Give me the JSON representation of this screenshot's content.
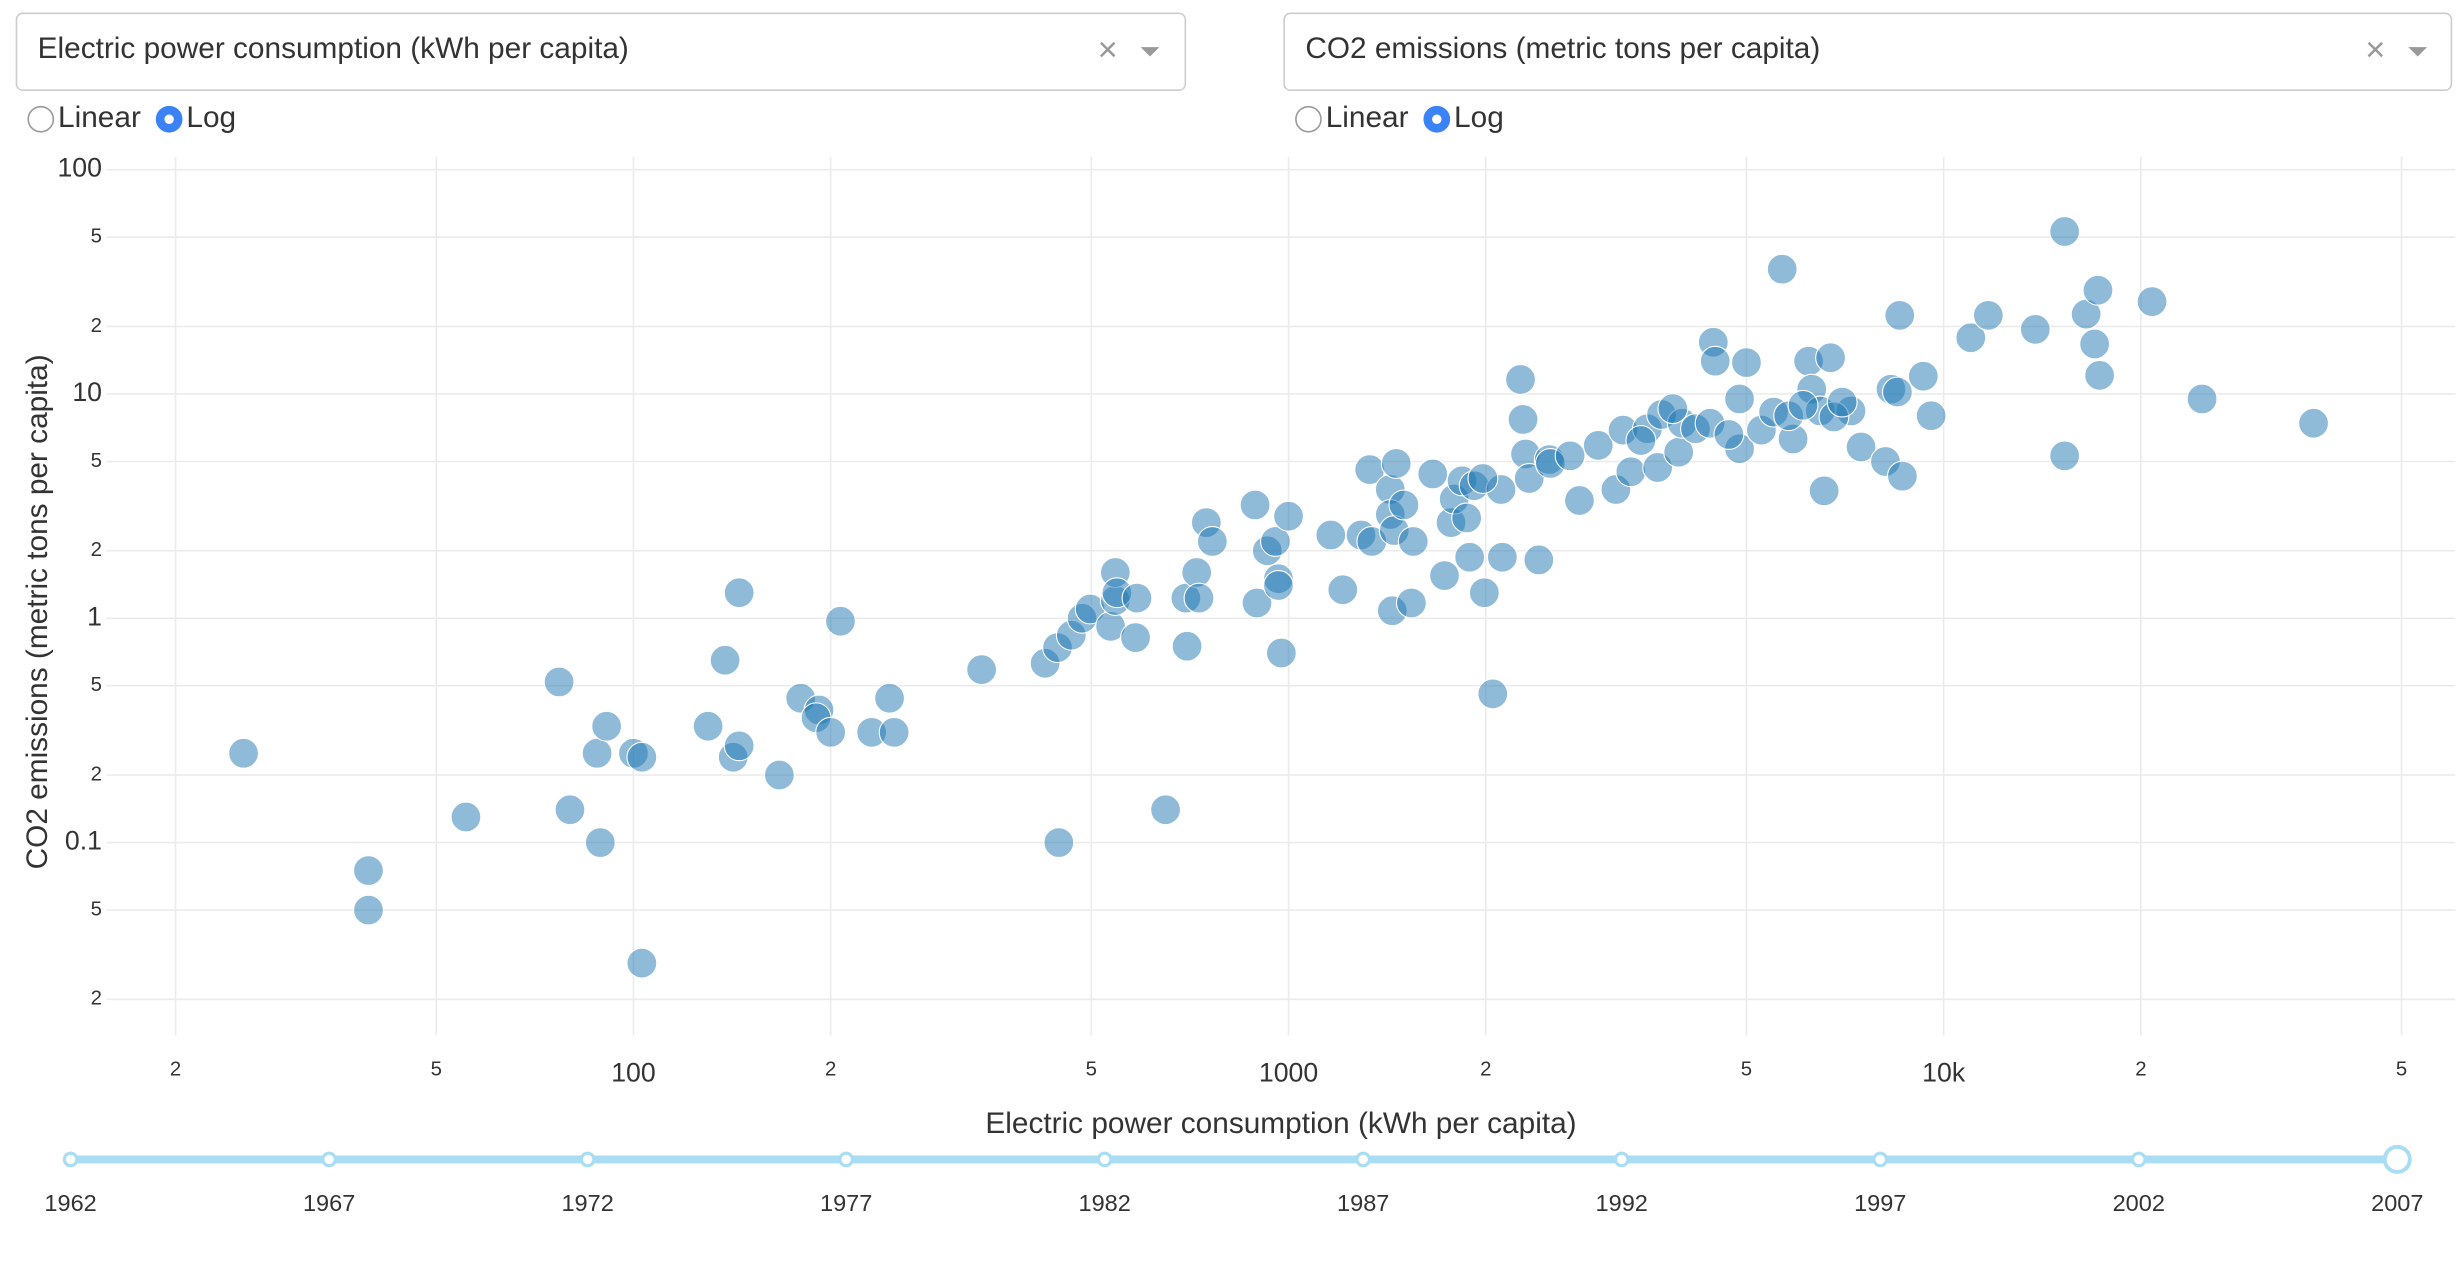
{
  "left_control": {
    "dropdown": "Electric power consumption (kWh per capita)",
    "scale_options": [
      "Linear",
      "Log"
    ],
    "scale": "Log"
  },
  "right_control": {
    "dropdown": "CO2 emissions (metric tons per capita)",
    "scale_options": [
      "Linear",
      "Log"
    ],
    "scale": "Log"
  },
  "chart_data": {
    "type": "scatter",
    "x_label": "Electric power consumption (kWh per capita)",
    "y_label": "CO2 emissions (metric tons per capita)",
    "xscale": "log",
    "yscale": "log",
    "grid": true,
    "color": "#1f77b4",
    "xlim": [
      15.7,
      60400
    ],
    "ylim": [
      0.0138,
      114
    ],
    "xticks": [
      {
        "value": 20,
        "label": "2"
      },
      {
        "value": 50,
        "label": "5"
      },
      100,
      {
        "value": 200,
        "label": "2"
      },
      {
        "value": 500,
        "label": "5"
      },
      1000,
      {
        "value": 2000,
        "label": "2"
      },
      {
        "value": 5000,
        "label": "5"
      },
      {
        "value": 10000,
        "label": "10k"
      },
      {
        "value": 20000,
        "label": "2"
      },
      {
        "value": 50000,
        "label": "5"
      }
    ],
    "yticks": [
      {
        "value": 0.02,
        "label": "2"
      },
      {
        "value": 0.05,
        "label": "5"
      },
      0.1,
      {
        "value": 0.2,
        "label": "2"
      },
      {
        "value": 0.5,
        "label": "5"
      },
      1,
      2,
      5,
      10,
      {
        "value": 20,
        "label": "2"
      },
      {
        "value": 50,
        "label": "5"
      },
      100
    ],
    "x": [
      25.4,
      39.4,
      39.4,
      55.5,
      77,
      80,
      88,
      89,
      91,
      100,
      103,
      103,
      130,
      138,
      145,
      142,
      145,
      167,
      180,
      192,
      190,
      200,
      207,
      231,
      246,
      250,
      340,
      425,
      446,
      444,
      466,
      484,
      498,
      535,
      544,
      544,
      547,
      584,
      587,
      649,
      697,
      700,
      724,
      730,
      749,
      765,
      889,
      895,
      928,
      955,
      965,
      965,
      975,
      1000,
      1160,
      1210,
      1290,
      1330,
      1340,
      1430,
      1430,
      1440,
      1450,
      1500,
      1540,
      1550,
      1660,
      1730,
      1770,
      1790,
      1840,
      1890,
      1920,
      1990,
      2050,
      2110,
      2120,
      2260,
      2280,
      2300,
      2330,
      2410,
      2500,
      2510,
      2780,
      2970,
      3160,
      3240,
      3330,
      3530,
      3660,
      3710,
      3940,
      3990,
      4180,
      4450,
      4480,
      4400,
      4880,
      4880,
      5000,
      5270,
      5670,
      5890,
      6220,
      6290,
      6570,
      6720,
      6480,
      7220,
      7480,
      8150,
      8310,
      8500,
      8570,
      8650,
      9310,
      9570,
      11000,
      11700,
      13800,
      15300,
      15300,
      16500,
      17000,
      17200,
      17300,
      20800,
      24800,
      36700,
      5500,
      5800,
      6100,
      6800,
      7000,
      4700,
      3860,
      3450,
      2690,
      1870,
      1980,
      1460
    ],
    "values": [
      0.25,
      0.075,
      0.05,
      0.13,
      0.52,
      0.14,
      0.25,
      0.1,
      0.33,
      0.25,
      0.24,
      0.029,
      0.33,
      0.65,
      1.3,
      0.24,
      0.27,
      0.2,
      0.44,
      0.39,
      0.36,
      0.31,
      0.97,
      0.31,
      0.44,
      0.31,
      0.59,
      0.63,
      0.1,
      0.74,
      0.84,
      1.0,
      1.1,
      0.92,
      1.2,
      1.6,
      1.3,
      0.82,
      1.23,
      0.14,
      1.23,
      0.75,
      1.6,
      1.23,
      2.67,
      2.2,
      3.2,
      1.17,
      2.0,
      2.2,
      1.5,
      1.4,
      0.7,
      2.85,
      2.35,
      1.34,
      2.35,
      4.6,
      2.2,
      3.75,
      2.9,
      1.08,
      2.46,
      3.2,
      1.17,
      2.2,
      4.4,
      1.55,
      2.67,
      3.4,
      4.1,
      1.87,
      3.9,
      1.3,
      0.46,
      3.75,
      1.87,
      11.6,
      7.7,
      5.4,
      4.2,
      1.82,
      5.1,
      4.9,
      3.35,
      5.9,
      3.75,
      6.9,
      4.5,
      7.0,
      4.7,
      8.1,
      5.5,
      7.4,
      7.0,
      17,
      14,
      7.4,
      9.5,
      5.7,
      13.8,
      6.9,
      36,
      6.3,
      14,
      10.5,
      3.7,
      14.5,
      8.4,
      8.4,
      5.8,
      5.0,
      10.5,
      10.2,
      22.4,
      4.3,
      12,
      8.0,
      17.8,
      22.4,
      19.4,
      53,
      5.3,
      22.7,
      16.7,
      29,
      12.1,
      25.8,
      9.5,
      7.4,
      8.3,
      8.0,
      8.9,
      7.9,
      9.2,
      6.6,
      8.6,
      6.2,
      5.3,
      2.8,
      4.2,
      4.9
    ]
  },
  "slider": {
    "marks": [
      1962,
      1967,
      1972,
      1977,
      1982,
      1987,
      1992,
      1997,
      2002,
      2007
    ],
    "value": 2007
  }
}
